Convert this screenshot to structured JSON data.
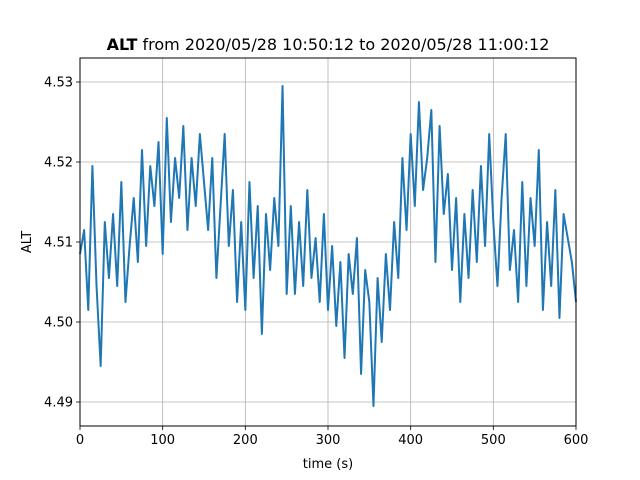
{
  "chart_data": {
    "type": "line",
    "title": {
      "variable": "ALT",
      "rest": " from 2020/05/28 10:50:12 to 2020/05/28 11:00:12"
    },
    "xlabel": "time (s)",
    "ylabel": "ALT",
    "xlim": [
      0,
      600
    ],
    "ylim": [
      4.487,
      4.533
    ],
    "xticks": [
      0,
      100,
      200,
      300,
      400,
      500,
      600
    ],
    "yticks": [
      4.49,
      4.5,
      4.51,
      4.52,
      4.53
    ],
    "grid": true,
    "colors": {
      "series": "#1f77b4"
    },
    "series": [
      {
        "x": [
          0,
          5,
          10,
          15,
          20,
          25,
          30,
          35,
          40,
          45,
          50,
          55,
          60,
          65,
          70,
          75,
          80,
          85,
          90,
          95,
          100,
          105,
          110,
          115,
          120,
          125,
          130,
          135,
          140,
          145,
          150,
          155,
          160,
          165,
          170,
          175,
          180,
          185,
          190,
          195,
          200,
          205,
          210,
          215,
          220,
          225,
          230,
          235,
          240,
          245,
          250,
          255,
          260,
          265,
          270,
          275,
          280,
          285,
          290,
          295,
          300,
          305,
          310,
          315,
          320,
          325,
          330,
          335,
          340,
          345,
          350,
          355,
          360,
          365,
          370,
          375,
          380,
          385,
          390,
          395,
          400,
          405,
          410,
          415,
          420,
          425,
          430,
          435,
          440,
          445,
          450,
          455,
          460,
          465,
          470,
          475,
          480,
          485,
          490,
          495,
          500,
          505,
          510,
          515,
          520,
          525,
          530,
          535,
          540,
          545,
          550,
          555,
          560,
          565,
          570,
          575,
          580,
          585,
          590,
          595,
          600
        ],
        "y": [
          4.5085,
          4.5115,
          4.5015,
          4.5195,
          4.5045,
          4.4945,
          4.5125,
          4.5055,
          4.5135,
          4.5045,
          4.5175,
          4.5025,
          4.5095,
          4.5155,
          4.5075,
          4.5215,
          4.5095,
          4.5195,
          4.5145,
          4.5225,
          4.5085,
          4.5255,
          4.5125,
          4.5205,
          4.5155,
          4.5245,
          4.5115,
          4.5205,
          4.5145,
          4.5235,
          4.5175,
          4.5115,
          4.5205,
          4.5055,
          4.5145,
          4.5235,
          4.5095,
          4.5165,
          4.5025,
          4.5125,
          4.5015,
          4.5175,
          4.5055,
          4.5145,
          4.4985,
          4.5135,
          4.5065,
          4.5155,
          4.5095,
          4.5295,
          4.5035,
          4.5145,
          4.5035,
          4.5125,
          4.5045,
          4.5165,
          4.5055,
          4.5105,
          4.5025,
          4.5135,
          4.5015,
          4.5095,
          4.4995,
          4.5075,
          4.4955,
          4.5085,
          4.5035,
          4.5105,
          4.4935,
          4.5065,
          4.5025,
          4.4895,
          4.5055,
          4.4975,
          4.5085,
          4.5015,
          4.5125,
          4.5055,
          4.5205,
          4.5115,
          4.5235,
          4.5145,
          4.5275,
          4.5165,
          4.5205,
          4.5265,
          4.5075,
          4.5245,
          4.5135,
          4.5185,
          4.5065,
          4.5155,
          4.5025,
          4.5135,
          4.5055,
          4.5165,
          4.5075,
          4.5195,
          4.5095,
          4.5235,
          4.5125,
          4.5045,
          4.5155,
          4.5235,
          4.5065,
          4.5115,
          4.5025,
          4.5175,
          4.5045,
          4.5155,
          4.5095,
          4.5215,
          4.5015,
          4.5125,
          4.5045,
          4.5165,
          4.5005,
          4.5135,
          4.5105,
          4.5075,
          4.5025
        ]
      }
    ]
  }
}
